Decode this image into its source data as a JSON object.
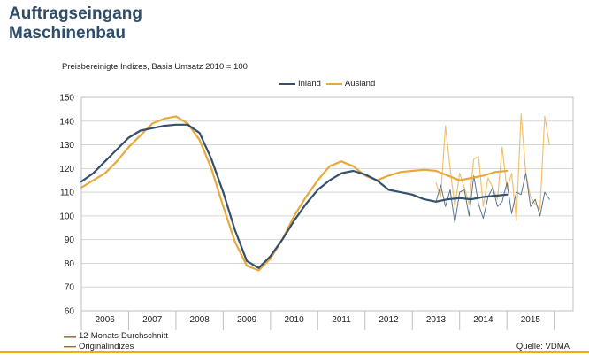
{
  "header": {
    "title_line1": "Auftragseingang",
    "title_line2": "Maschinenbau"
  },
  "subtitle": "Preisbereinigte Indizes, Basis Umsatz 2010 = 100",
  "legend": {
    "inland": "Inland",
    "ausland": "Ausland"
  },
  "bottom_legend": {
    "avg": "12-Monats-Durchschnitt",
    "orig": "Originalindizes"
  },
  "source": "Quelle: VDMA",
  "colors": {
    "inland": "#34506b",
    "ausland": "#e8a93c",
    "inland_orig": "#5a7590",
    "ausland_orig": "#f0c272",
    "grid": "#d5d5d5",
    "title": "#2e4d6b",
    "rule": "#f0b000"
  },
  "chart_data": {
    "type": "line",
    "ylim": [
      60,
      150
    ],
    "yticks": [
      60,
      70,
      80,
      90,
      100,
      110,
      120,
      130,
      140,
      150
    ],
    "xlim": [
      2005.5,
      2015.9
    ],
    "xticklabels": [
      "2006",
      "2007",
      "2008",
      "2009",
      "2010",
      "2011",
      "2012",
      "2013",
      "2014",
      "2015"
    ],
    "xtick_positions": [
      2006,
      2007,
      2008,
      2009,
      2010,
      2011,
      2012,
      2013,
      2014,
      2015
    ],
    "grid": true,
    "legend_position": "top-center",
    "series": [
      {
        "name": "Inland",
        "kind": "12-Monats-Durchschnitt",
        "points": [
          [
            2005.5,
            114.5
          ],
          [
            2005.75,
            118
          ],
          [
            2006.0,
            123
          ],
          [
            2006.25,
            128
          ],
          [
            2006.5,
            133
          ],
          [
            2006.75,
            136
          ],
          [
            2007.0,
            137
          ],
          [
            2007.25,
            138
          ],
          [
            2007.5,
            138.5
          ],
          [
            2007.75,
            138.5
          ],
          [
            2008.0,
            135
          ],
          [
            2008.25,
            124
          ],
          [
            2008.5,
            110
          ],
          [
            2008.75,
            94
          ],
          [
            2009.0,
            81
          ],
          [
            2009.25,
            78
          ],
          [
            2009.5,
            83
          ],
          [
            2009.75,
            90
          ],
          [
            2010.0,
            98
          ],
          [
            2010.25,
            105
          ],
          [
            2010.5,
            111
          ],
          [
            2010.75,
            115
          ],
          [
            2011.0,
            118
          ],
          [
            2011.25,
            119
          ],
          [
            2011.5,
            117.5
          ],
          [
            2011.75,
            115
          ],
          [
            2012.0,
            111
          ],
          [
            2012.25,
            110
          ],
          [
            2012.5,
            109
          ],
          [
            2012.75,
            107
          ],
          [
            2013.0,
            106
          ],
          [
            2013.25,
            107
          ],
          [
            2013.5,
            107.5
          ],
          [
            2013.75,
            107
          ],
          [
            2014.0,
            108
          ],
          [
            2014.25,
            108.5
          ],
          [
            2014.5,
            109
          ]
        ]
      },
      {
        "name": "Ausland",
        "kind": "12-Monats-Durchschnitt",
        "points": [
          [
            2005.5,
            112
          ],
          [
            2005.75,
            115
          ],
          [
            2006.0,
            118
          ],
          [
            2006.25,
            123
          ],
          [
            2006.5,
            129
          ],
          [
            2006.75,
            134
          ],
          [
            2007.0,
            139
          ],
          [
            2007.25,
            141
          ],
          [
            2007.5,
            142
          ],
          [
            2007.75,
            139
          ],
          [
            2008.0,
            132
          ],
          [
            2008.25,
            120
          ],
          [
            2008.5,
            104
          ],
          [
            2008.75,
            89
          ],
          [
            2009.0,
            79
          ],
          [
            2009.25,
            77
          ],
          [
            2009.5,
            82
          ],
          [
            2009.75,
            90
          ],
          [
            2010.0,
            100
          ],
          [
            2010.25,
            108
          ],
          [
            2010.5,
            115
          ],
          [
            2010.75,
            121
          ],
          [
            2011.0,
            123
          ],
          [
            2011.25,
            121
          ],
          [
            2011.5,
            117
          ],
          [
            2011.75,
            115
          ],
          [
            2012.0,
            117
          ],
          [
            2012.25,
            118.5
          ],
          [
            2012.5,
            119
          ],
          [
            2012.75,
            119.5
          ],
          [
            2013.0,
            119
          ],
          [
            2013.25,
            117
          ],
          [
            2013.5,
            115
          ],
          [
            2013.75,
            116
          ],
          [
            2014.0,
            117
          ],
          [
            2014.25,
            118.5
          ],
          [
            2014.5,
            119
          ]
        ]
      },
      {
        "name": "Inland",
        "kind": "Originalindizes",
        "points": [
          [
            2013.0,
            106
          ],
          [
            2013.1,
            113
          ],
          [
            2013.2,
            104
          ],
          [
            2013.3,
            111
          ],
          [
            2013.4,
            97
          ],
          [
            2013.5,
            110
          ],
          [
            2013.6,
            111
          ],
          [
            2013.7,
            100
          ],
          [
            2013.8,
            117
          ],
          [
            2013.9,
            105
          ],
          [
            2014.0,
            99
          ],
          [
            2014.1,
            108
          ],
          [
            2014.2,
            112
          ],
          [
            2014.3,
            104
          ],
          [
            2014.4,
            106
          ],
          [
            2014.5,
            114
          ],
          [
            2014.6,
            101
          ],
          [
            2014.7,
            110
          ],
          [
            2014.8,
            109
          ],
          [
            2014.9,
            118
          ],
          [
            2015.0,
            104
          ],
          [
            2015.1,
            107
          ],
          [
            2015.2,
            100
          ],
          [
            2015.3,
            110
          ],
          [
            2015.4,
            107
          ]
        ]
      },
      {
        "name": "Ausland",
        "kind": "Originalindizes",
        "points": [
          [
            2013.0,
            114
          ],
          [
            2013.1,
            108
          ],
          [
            2013.2,
            138
          ],
          [
            2013.3,
            120
          ],
          [
            2013.4,
            104
          ],
          [
            2013.5,
            118
          ],
          [
            2013.6,
            112
          ],
          [
            2013.7,
            105
          ],
          [
            2013.8,
            124
          ],
          [
            2013.9,
            125
          ],
          [
            2014.0,
            104
          ],
          [
            2014.1,
            116
          ],
          [
            2014.2,
            112
          ],
          [
            2014.3,
            107
          ],
          [
            2014.4,
            129
          ],
          [
            2014.5,
            111
          ],
          [
            2014.6,
            118
          ],
          [
            2014.7,
            98
          ],
          [
            2014.8,
            143
          ],
          [
            2014.9,
            118
          ],
          [
            2015.0,
            108
          ],
          [
            2015.1,
            105
          ],
          [
            2015.2,
            103
          ],
          [
            2015.3,
            142
          ],
          [
            2015.4,
            130
          ]
        ]
      }
    ]
  }
}
